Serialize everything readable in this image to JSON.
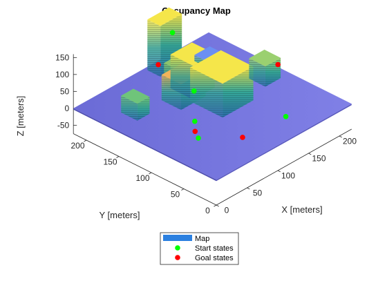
{
  "chart_data": {
    "type": "scatter",
    "title": "Occupancy Map",
    "xlabel": "X [meters]",
    "ylabel": "Y [meters]",
    "zlabel": "Z [meters]",
    "xlim": [
      0,
      220
    ],
    "ylim": [
      0,
      220
    ],
    "zlim": [
      -75,
      160
    ],
    "x_ticks": [
      0,
      50,
      100,
      150,
      200
    ],
    "y_ticks": [
      0,
      50,
      100,
      150,
      200
    ],
    "z_ticks": [
      -50,
      0,
      50,
      100,
      150
    ],
    "map_color": "#8080e6",
    "series": [
      {
        "name": "Map",
        "color": "#2b80e0",
        "buildings": [
          {
            "x": [
              115,
              150
            ],
            "y": [
              195,
              215
            ],
            "z": [
              0,
              150
            ],
            "top_color": "#f5e64a"
          },
          {
            "x": [
              30,
              50
            ],
            "y": [
              150,
              175
            ],
            "z": [
              0,
              50
            ],
            "top_color": "#6fc47a"
          },
          {
            "x": [
              80,
              120
            ],
            "y": [
              130,
              160
            ],
            "z": [
              0,
              75
            ],
            "top_color": "#f2b35a"
          },
          {
            "x": [
              105,
              125
            ],
            "y": [
              160,
              180
            ],
            "z": [
              0,
              65
            ],
            "top_color": "#8cc46c"
          },
          {
            "x": [
              105,
              140
            ],
            "y": [
              135,
              170
            ],
            "z": [
              0,
              100
            ],
            "top_color": "#f5e64a"
          },
          {
            "x": [
              165,
              190
            ],
            "y": [
              165,
              190
            ],
            "z": [
              0,
              18
            ],
            "top_color": "#6b8ff2"
          },
          {
            "x": [
              150,
              170
            ],
            "y": [
              140,
              160
            ],
            "z": [
              0,
              15
            ],
            "top_color": "#6b8ff2"
          },
          {
            "x": [
              100,
              150
            ],
            "y": [
              85,
              135
            ],
            "z": [
              0,
              100
            ],
            "top_color": "#f5e64a"
          },
          {
            "x": [
              180,
              205
            ],
            "y": [
              95,
              120
            ],
            "z": [
              0,
              60
            ],
            "top_color": "#9bd070"
          }
        ]
      },
      {
        "name": "Start states",
        "color": "#00ff00",
        "points": [
          [
            140,
            200,
            100
          ],
          [
            80,
            110,
            75
          ],
          [
            60,
            90,
            25
          ],
          [
            50,
            75,
            0
          ],
          [
            150,
            35,
            0
          ]
        ]
      },
      {
        "name": "Goal states",
        "color": "#ff0000",
        "points": [
          [
            80,
            165,
            100
          ],
          [
            50,
            80,
            15
          ],
          [
            190,
            85,
            65
          ],
          [
            85,
            40,
            0
          ]
        ]
      }
    ],
    "legend_position": "bottom-center",
    "grid": false
  }
}
